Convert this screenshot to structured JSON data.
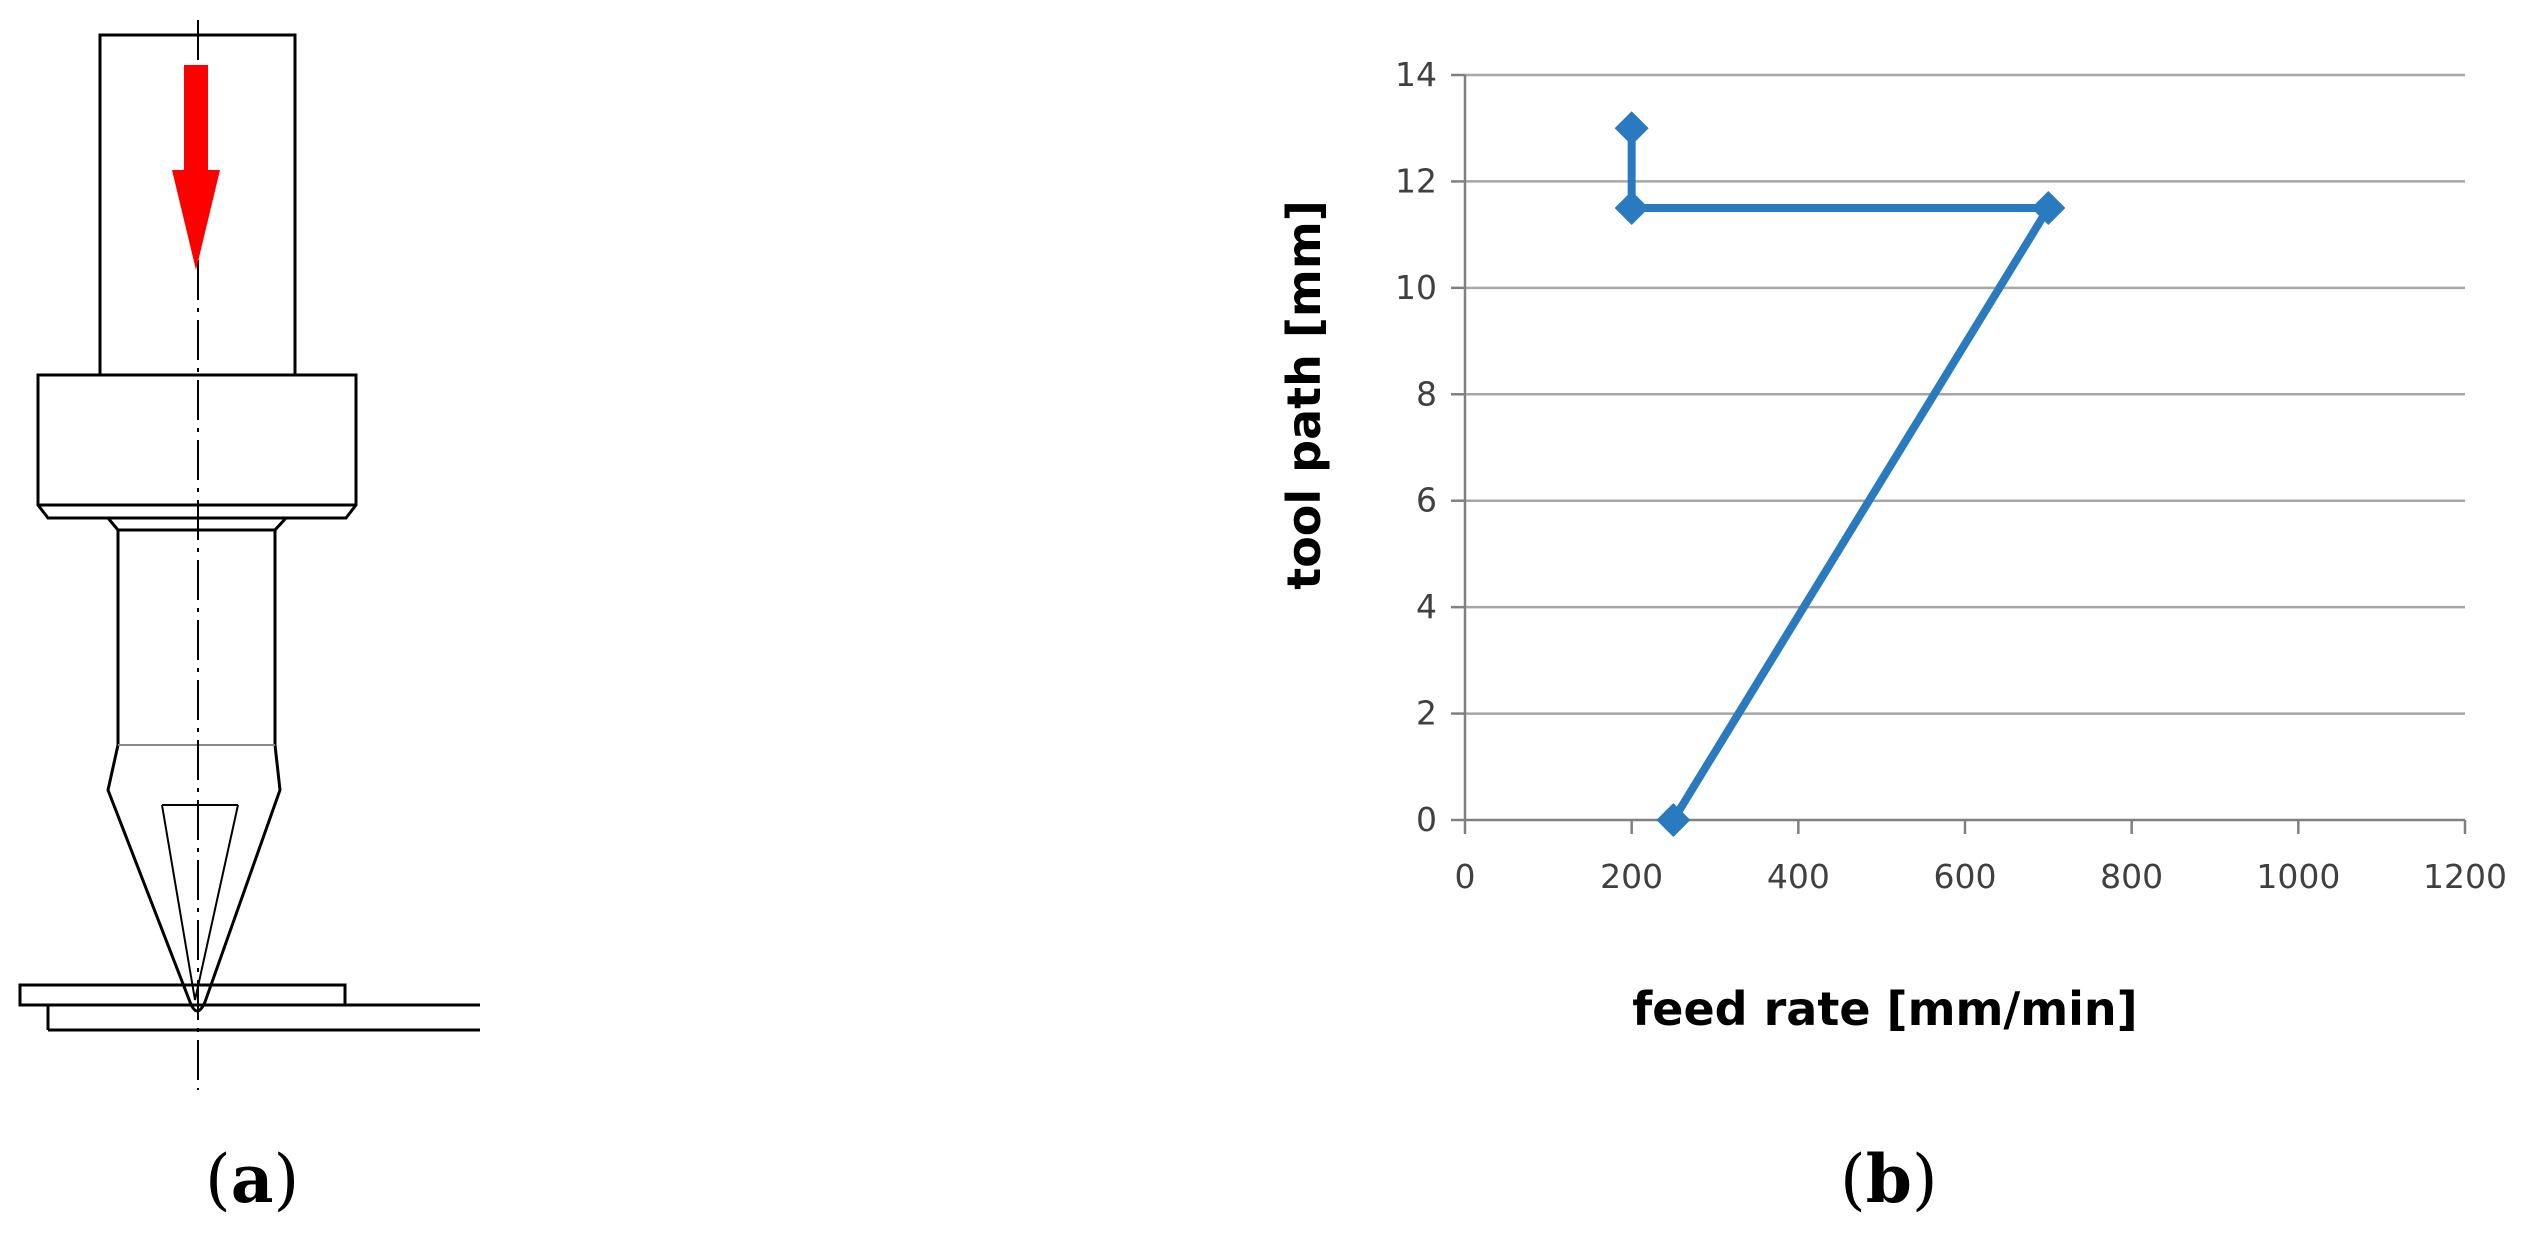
{
  "panel_a": {
    "caption_open": "(",
    "caption_letter": "a",
    "caption_close": ")",
    "arrow_color": "#ff0000",
    "line_color": "#000000"
  },
  "panel_b": {
    "caption_open": "(",
    "caption_letter": "b",
    "caption_close": ")"
  },
  "chart_data": {
    "type": "line",
    "title": "",
    "xlabel": "feed rate  [mm/min]",
    "ylabel": "tool path  [mm]",
    "xlim": [
      0,
      1200
    ],
    "ylim": [
      0,
      14
    ],
    "xticks": [
      0,
      200,
      400,
      600,
      800,
      1000,
      1200
    ],
    "yticks": [
      0,
      2,
      4,
      6,
      8,
      10,
      12,
      14
    ],
    "grid": "horizontal",
    "legend": "none",
    "series": [
      {
        "name": "tool path",
        "color": "#2a7ac0",
        "marker": "diamond",
        "x": [
          250,
          700,
          200,
          200
        ],
        "y": [
          0,
          11.5,
          11.5,
          13
        ]
      }
    ]
  }
}
